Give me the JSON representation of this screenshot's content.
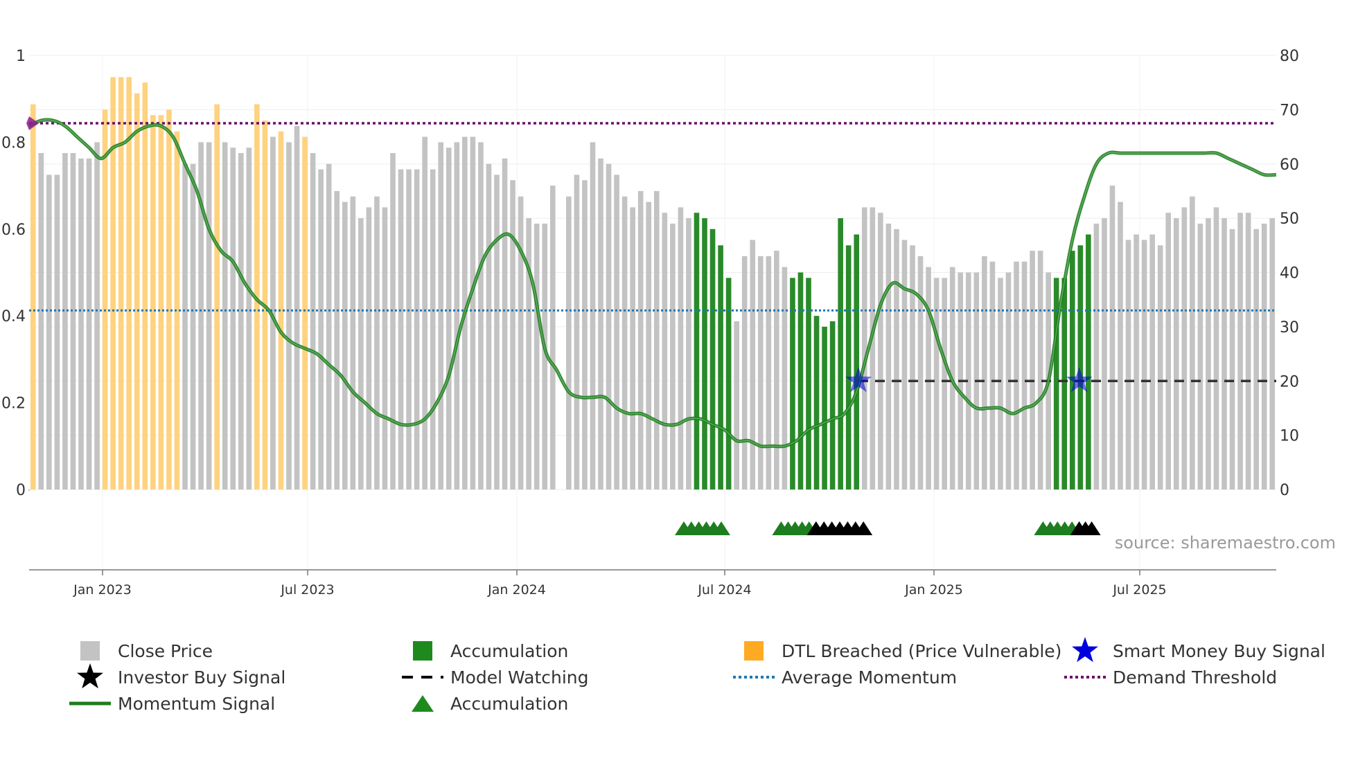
{
  "source_label": "source: sharemaestro.com",
  "colors": {
    "close": "#c3c3c3",
    "accumulation": "#2a8a2a",
    "dtl": "#ffd27f",
    "momentum": "#1e7d1e",
    "avg_momentum": "#1f77b4",
    "demand": "#6b0f6b",
    "smart_star": "#0000dd",
    "investor": "#000000"
  },
  "chart_data": {
    "type": "bar",
    "title": "",
    "y_left": {
      "min": 0,
      "max": 1,
      "ticks": [
        "0",
        "0.2",
        "0.4",
        "0.6",
        "0.8",
        "1"
      ]
    },
    "y_right": {
      "min": 0,
      "max": 80,
      "ticks": [
        "0",
        "10",
        "20",
        "30",
        "40",
        "50",
        "60",
        "70",
        "80"
      ]
    },
    "x_ticks": [
      "Jan 2023",
      "Jul 2023",
      "Jan 2024",
      "Jul 2024",
      "Jan 2025",
      "Jul 2025"
    ],
    "close_price": [
      71,
      62,
      58,
      58,
      62,
      62,
      61,
      61,
      64,
      70,
      76,
      76,
      76,
      73,
      75,
      69,
      69,
      70,
      66,
      60,
      60,
      64,
      64,
      71,
      64,
      63,
      62,
      63,
      71,
      68,
      65,
      66,
      64,
      67,
      65,
      62,
      59,
      60,
      55,
      53,
      54,
      50,
      52,
      54,
      52,
      62,
      59,
      59,
      59,
      65,
      59,
      64,
      63,
      64,
      65,
      65,
      64,
      60,
      58,
      61,
      57,
      54,
      50,
      49,
      49,
      56,
      0,
      54,
      58,
      57,
      64,
      61,
      60,
      58,
      54,
      52,
      55,
      53,
      55,
      51,
      49,
      52,
      50,
      51,
      50,
      48,
      45,
      39,
      31,
      43,
      46,
      43,
      43,
      44,
      41,
      39,
      40,
      39,
      32,
      30,
      31,
      50,
      45,
      47,
      52,
      52,
      51,
      49,
      48,
      46,
      45,
      43,
      41,
      39,
      39,
      41,
      40,
      40,
      40,
      43,
      42,
      39,
      40,
      42,
      42,
      44,
      44,
      40,
      39,
      39,
      44,
      45,
      47,
      49,
      50,
      56,
      53,
      46,
      47,
      46,
      47,
      45,
      51,
      50,
      52,
      54,
      49,
      50,
      52,
      50,
      48,
      51,
      51,
      48,
      49,
      50
    ],
    "accumulation_ranges": [
      [
        83,
        87
      ],
      [
        95,
        103
      ],
      [
        128,
        132
      ]
    ],
    "dtl_breached_ranges": [
      [
        0,
        0
      ],
      [
        9,
        18
      ],
      [
        23,
        23
      ],
      [
        28,
        29
      ],
      [
        31,
        31
      ],
      [
        34,
        34
      ]
    ],
    "momentum_signal": [
      67,
      68,
      68,
      67,
      65,
      63,
      61,
      63,
      64,
      66,
      67,
      67,
      65,
      60,
      55,
      48,
      44,
      42,
      38,
      35,
      33,
      29,
      27,
      26,
      25,
      23,
      21,
      18,
      16,
      14,
      13,
      12,
      12,
      13,
      16,
      21,
      30,
      37,
      43,
      46,
      47,
      44,
      38,
      26,
      22,
      18,
      17,
      17,
      17,
      15,
      14,
      14,
      13,
      12,
      12,
      13,
      13,
      12,
      11,
      9,
      9,
      8,
      8,
      8,
      9,
      11,
      12,
      13,
      14,
      18,
      26,
      34,
      38,
      37,
      36,
      33,
      26,
      20,
      17,
      15,
      15,
      15,
      14,
      15,
      16,
      20,
      34,
      46,
      54,
      60,
      62,
      62,
      62,
      62,
      62,
      62,
      62,
      62,
      62,
      62,
      61,
      60,
      59,
      58,
      58
    ],
    "average_momentum": 33.0,
    "demand_threshold": 67.5,
    "model_watching_level": 20,
    "model_watching_from": 0.665,
    "smart_money_buy_signals": [
      0.665,
      0.842
    ],
    "accumulation_markers": [
      [
        0.525,
        0.555
      ],
      [
        0.603,
        0.631
      ],
      [
        0.813,
        0.842
      ]
    ],
    "investor_buy_markers": [
      [
        0.631,
        0.669
      ],
      [
        0.842,
        0.852
      ]
    ],
    "momentum_start_marker": true
  },
  "legend": [
    {
      "label": "Close Price",
      "symbol": "close-square"
    },
    {
      "label": "Accumulation",
      "symbol": "accum-square"
    },
    {
      "label": "DTL Breached (Price Vulnerable)",
      "symbol": "dtl-square"
    },
    {
      "label": "Smart Money Buy Signal",
      "symbol": "blue-star"
    },
    {
      "label": "Investor Buy Signal",
      "symbol": "black-star"
    },
    {
      "label": "Model Watching",
      "symbol": "dashed-line"
    },
    {
      "label": "Average Momentum",
      "symbol": "dotted-blue-line"
    },
    {
      "label": "Demand Threshold",
      "symbol": "dotted-purple-line"
    },
    {
      "label": "Momentum Signal",
      "symbol": "green-line"
    },
    {
      "label": "Accumulation",
      "symbol": "green-triangle"
    }
  ]
}
